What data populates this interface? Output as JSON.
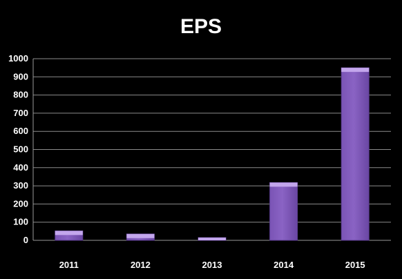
{
  "chart_data": {
    "type": "bar",
    "title": "EPS",
    "xlabel": "",
    "ylabel": "",
    "categories": [
      "2011",
      "2012",
      "2013",
      "2014",
      "2015"
    ],
    "values": [
      52,
      35,
      15,
      318,
      950
    ],
    "ylim": [
      0,
      1000
    ],
    "yticks": [
      0,
      100,
      200,
      300,
      400,
      500,
      600,
      700,
      800,
      900,
      1000
    ],
    "grid": true,
    "legend": "none",
    "colors": {
      "background": "#000000",
      "bar_top": "#c3a6ec",
      "bar_face": "#8a63c4",
      "bar_edge": "#5a3d8f",
      "text": "#ffffff",
      "gridline": "#8c8c8c"
    }
  }
}
